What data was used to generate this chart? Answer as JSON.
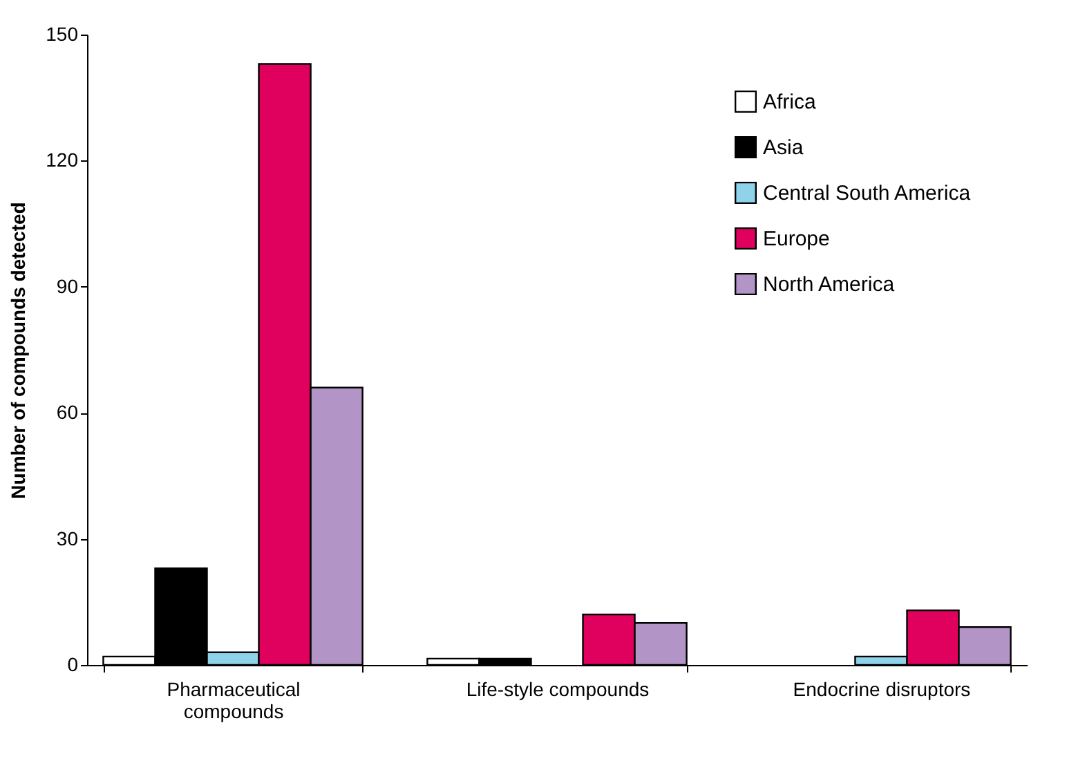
{
  "chart_data": {
    "type": "bar",
    "ylabel": "Number of compounds detected",
    "categories": [
      "Pharmaceutical compounds",
      "Life-style compounds",
      "Endocrine disruptors"
    ],
    "series": [
      {
        "name": "Africa",
        "color": "#ffffff",
        "values": [
          2,
          1.5,
          null
        ]
      },
      {
        "name": "Asia",
        "color": "#000000",
        "values": [
          23,
          1.5,
          null
        ]
      },
      {
        "name": "Central South America",
        "color": "#8fd3ea",
        "values": [
          3,
          null,
          2
        ]
      },
      {
        "name": "Europe",
        "color": "#e0005e",
        "values": [
          143,
          12,
          13
        ]
      },
      {
        "name": "North America",
        "color": "#b394c6",
        "values": [
          66,
          10,
          9
        ]
      }
    ],
    "ylim": [
      0,
      150
    ],
    "yticks": [
      0,
      30,
      60,
      90,
      120,
      150
    ],
    "grid": false,
    "legend": "top right"
  }
}
